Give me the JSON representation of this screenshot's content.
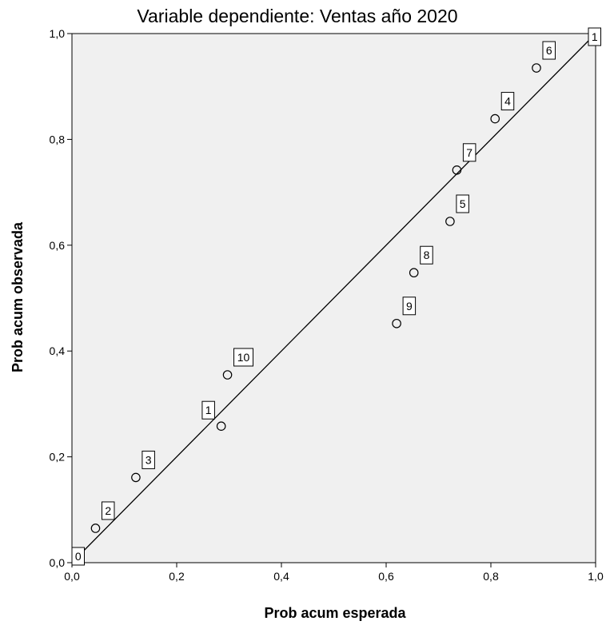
{
  "colors": {
    "plot_background": "#f0f0f0",
    "axis": "#000000",
    "point_stroke": "#000000",
    "label_box_fill": "#ffffff"
  },
  "chart_data": {
    "type": "scatter",
    "title": "Variable dependiente: Ventas año 2020",
    "xlabel": "Prob acum esperada",
    "ylabel": "Prob acum observada",
    "xlim": [
      0,
      1
    ],
    "ylim": [
      0,
      1
    ],
    "xticks": [
      "0,0",
      "0,2",
      "0,4",
      "0,6",
      "0,8",
      "1,0"
    ],
    "yticks": [
      "0,0",
      "0,2",
      "0,4",
      "0,6",
      "0,8",
      "1,0"
    ],
    "grid": false,
    "reference_line": {
      "from": [
        0,
        0
      ],
      "to": [
        1,
        1
      ]
    },
    "points": [
      {
        "x": 0.045,
        "y": 0.065,
        "label": "2"
      },
      {
        "x": 0.122,
        "y": 0.161,
        "label": "3"
      },
      {
        "x": 0.285,
        "y": 0.258,
        "label": "1"
      },
      {
        "x": 0.297,
        "y": 0.355,
        "label": "10"
      },
      {
        "x": 0.62,
        "y": 0.452,
        "label": "9"
      },
      {
        "x": 0.653,
        "y": 0.548,
        "label": "8"
      },
      {
        "x": 0.722,
        "y": 0.645,
        "label": "5"
      },
      {
        "x": 0.735,
        "y": 0.742,
        "label": "7"
      },
      {
        "x": 0.808,
        "y": 0.839,
        "label": "4"
      },
      {
        "x": 0.887,
        "y": 0.935,
        "label": "6"
      }
    ],
    "extra_labels": [
      {
        "x": 0.0,
        "y": 0.0,
        "label": "0"
      },
      {
        "x": 1.0,
        "y": 1.0,
        "label": "1"
      }
    ]
  }
}
